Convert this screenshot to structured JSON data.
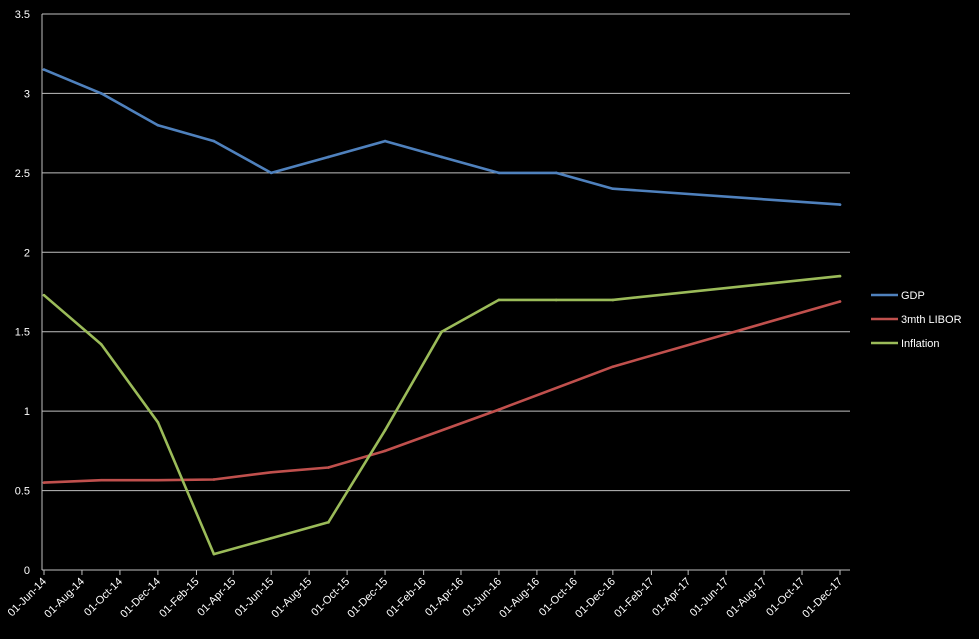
{
  "chart_data": {
    "type": "line",
    "x_ticks": [
      "01-Jun-14",
      "01-Aug-14",
      "01-Oct-14",
      "01-Dec-14",
      "01-Feb-15",
      "01-Apr-15",
      "01-Jun-15",
      "01-Aug-15",
      "01-Oct-15",
      "01-Dec-15",
      "01-Feb-16",
      "01-Apr-16",
      "01-Jun-16",
      "01-Aug-16",
      "01-Oct-16",
      "01-Dec-16",
      "01-Feb-17",
      "01-Apr-17",
      "01-Jun-17",
      "01-Aug-17",
      "01-Oct-17",
      "01-Dec-17"
    ],
    "y_ticks": [
      "0",
      "0.5",
      "1",
      "1.5",
      "2",
      "2.5",
      "3",
      "3.5"
    ],
    "ylim": [
      0,
      3.5
    ],
    "grid": true,
    "legend_position": "right",
    "background": "#000000",
    "series": [
      {
        "name": "GDP",
        "color": "#4f81bd",
        "x": [
          "01-Jun-14",
          "01-Sep-14",
          "01-Dec-14",
          "01-Mar-15",
          "01-Jun-15",
          "01-Sep-15",
          "01-Dec-15",
          "01-Mar-16",
          "01-Jun-16",
          "01-Sep-16",
          "01-Dec-16",
          "01-Dec-17"
        ],
        "values": [
          3.15,
          3.0,
          2.8,
          2.7,
          2.5,
          2.6,
          2.7,
          2.6,
          2.5,
          2.5,
          2.4,
          2.3
        ]
      },
      {
        "name": "3mth LIBOR",
        "color": "#c0504d",
        "x": [
          "01-Jun-14",
          "01-Sep-14",
          "01-Dec-14",
          "01-Mar-15",
          "01-Jun-15",
          "01-Sep-15",
          "01-Dec-15",
          "01-Jun-16",
          "01-Dec-16",
          "01-Dec-17"
        ],
        "values": [
          0.55,
          0.565,
          0.565,
          0.57,
          0.615,
          0.645,
          0.75,
          1.01,
          1.28,
          1.69
        ]
      },
      {
        "name": "Inflation",
        "color": "#9bbb59",
        "x": [
          "01-Jun-14",
          "01-Sep-14",
          "01-Dec-14",
          "01-Mar-15",
          "01-Jun-15",
          "01-Sep-15",
          "01-Dec-15",
          "01-Mar-16",
          "01-Jun-16",
          "01-Sep-16",
          "01-Dec-16",
          "01-Dec-17"
        ],
        "values": [
          1.73,
          1.42,
          0.93,
          0.1,
          0.2,
          0.3,
          0.88,
          1.5,
          1.7,
          1.7,
          1.7,
          1.85
        ]
      }
    ]
  }
}
